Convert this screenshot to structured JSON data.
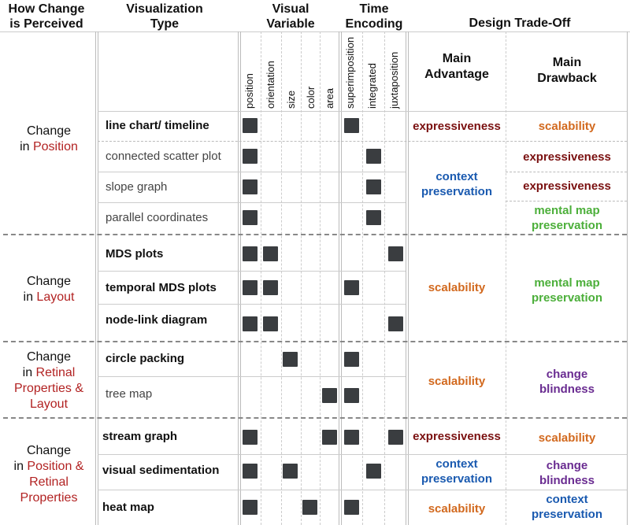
{
  "headers": {
    "perceived": "How Change\nis Perceived",
    "vistype": "Visualization\nType",
    "visvar": "Visual\nVariable",
    "time": "Time\nEncoding",
    "tradeoff": "Design Trade-Off",
    "advantage": "Main\nAdvantage",
    "drawback": "Main\nDrawback"
  },
  "columns": {
    "position": "position",
    "orientation": "orientation",
    "size": "size",
    "color": "color",
    "area": "area",
    "superimposition": "superimposition",
    "integrated": "integrated",
    "juxtaposition": "juxtaposition"
  },
  "categories": {
    "position": {
      "line1": "Change",
      "line2a": "in ",
      "line2b": "Position"
    },
    "layout": {
      "line1": "Change",
      "line2a": "in ",
      "line2b": "Layout"
    },
    "retinal": {
      "line1": "Change",
      "line2a": "in ",
      "line2b": "Retinal",
      "line3": "Properties &",
      "line4": "Layout"
    },
    "posret": {
      "line1": "Change",
      "line2a": "in ",
      "line2b": "Position &",
      "line3": "Retinal",
      "line4": "Properties"
    }
  },
  "rows": [
    {
      "name": "line chart/ timeline",
      "marks": [
        "position",
        "superimposition"
      ]
    },
    {
      "name": "connected scatter plot",
      "marks": [
        "position",
        "integrated"
      ]
    },
    {
      "name": "slope graph",
      "marks": [
        "position",
        "integrated"
      ]
    },
    {
      "name": "parallel coordinates",
      "marks": [
        "position",
        "integrated"
      ]
    },
    {
      "name": "MDS plots",
      "marks": [
        "position",
        "orientation",
        "juxtaposition"
      ]
    },
    {
      "name": "temporal MDS plots",
      "marks": [
        "position",
        "orientation",
        "superimposition"
      ]
    },
    {
      "name": "node-link diagram",
      "marks": [
        "position",
        "orientation",
        "juxtaposition"
      ]
    },
    {
      "name": "circle packing",
      "marks": [
        "size",
        "superimposition"
      ]
    },
    {
      "name": "tree map",
      "marks": [
        "area",
        "superimposition"
      ]
    },
    {
      "name": "stream graph",
      "marks": [
        "position",
        "area",
        "superimposition",
        "juxtaposition"
      ]
    },
    {
      "name": "visual sedimentation",
      "marks": [
        "position",
        "size",
        "integrated"
      ]
    },
    {
      "name": "heat map",
      "marks": [
        "position",
        "color",
        "superimposition"
      ]
    }
  ],
  "tradeoffs": {
    "r0_adv": "expressiveness",
    "r0_draw": "scalability",
    "pos_adv": "context\npreservation",
    "r1_draw": "expressiveness",
    "r2_draw": "expressiveness",
    "r3_draw": "mental map\npreservation",
    "layout_adv": "scalability",
    "layout_draw": "mental map\npreservation",
    "ret_adv": "scalability",
    "ret_draw": "change\nblindness",
    "r9_adv": "expressiveness",
    "r9_draw": "scalability",
    "r10_adv": "context\npreservation",
    "r10_draw": "change\nblindness",
    "r11_adv": "scalability",
    "r11_draw": "context\npreservation"
  },
  "colors": {
    "expressiveness": "#7a1010",
    "scalability": "#d2691e",
    "context": "#1a5ab0",
    "mentalmap": "#4caf3a",
    "change": "#6a2c91",
    "category_red": "#b22222",
    "mark": "#3a3d40"
  }
}
